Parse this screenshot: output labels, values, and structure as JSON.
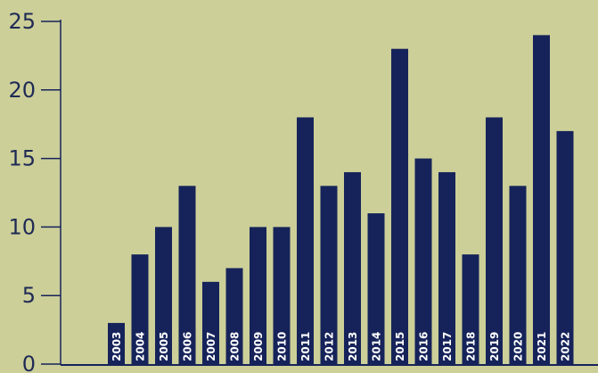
{
  "chart_data": {
    "type": "bar",
    "title": "",
    "xlabel": "",
    "ylabel": "",
    "categories": [
      "2003",
      "2004",
      "2005",
      "2006",
      "2007",
      "2008",
      "2009",
      "2010",
      "2011",
      "2012",
      "2013",
      "2014",
      "2015",
      "2016",
      "2017",
      "2018",
      "2019",
      "2020",
      "2021",
      "2022"
    ],
    "values": [
      3,
      8,
      10,
      13,
      6,
      7,
      10,
      10,
      18,
      13,
      14,
      11,
      23,
      15,
      14,
      8,
      18,
      13,
      24,
      17
    ],
    "ylim": [
      0,
      25
    ],
    "yticks": [
      "0",
      "5",
      "10",
      "15",
      "20",
      "25"
    ],
    "grid": false,
    "legend": "none",
    "colors": {
      "background": "#cccf98",
      "bar": "#16235a",
      "axis": "#16235a",
      "bar_label": "#ffffff",
      "tick_label": "#1f2a55"
    }
  }
}
